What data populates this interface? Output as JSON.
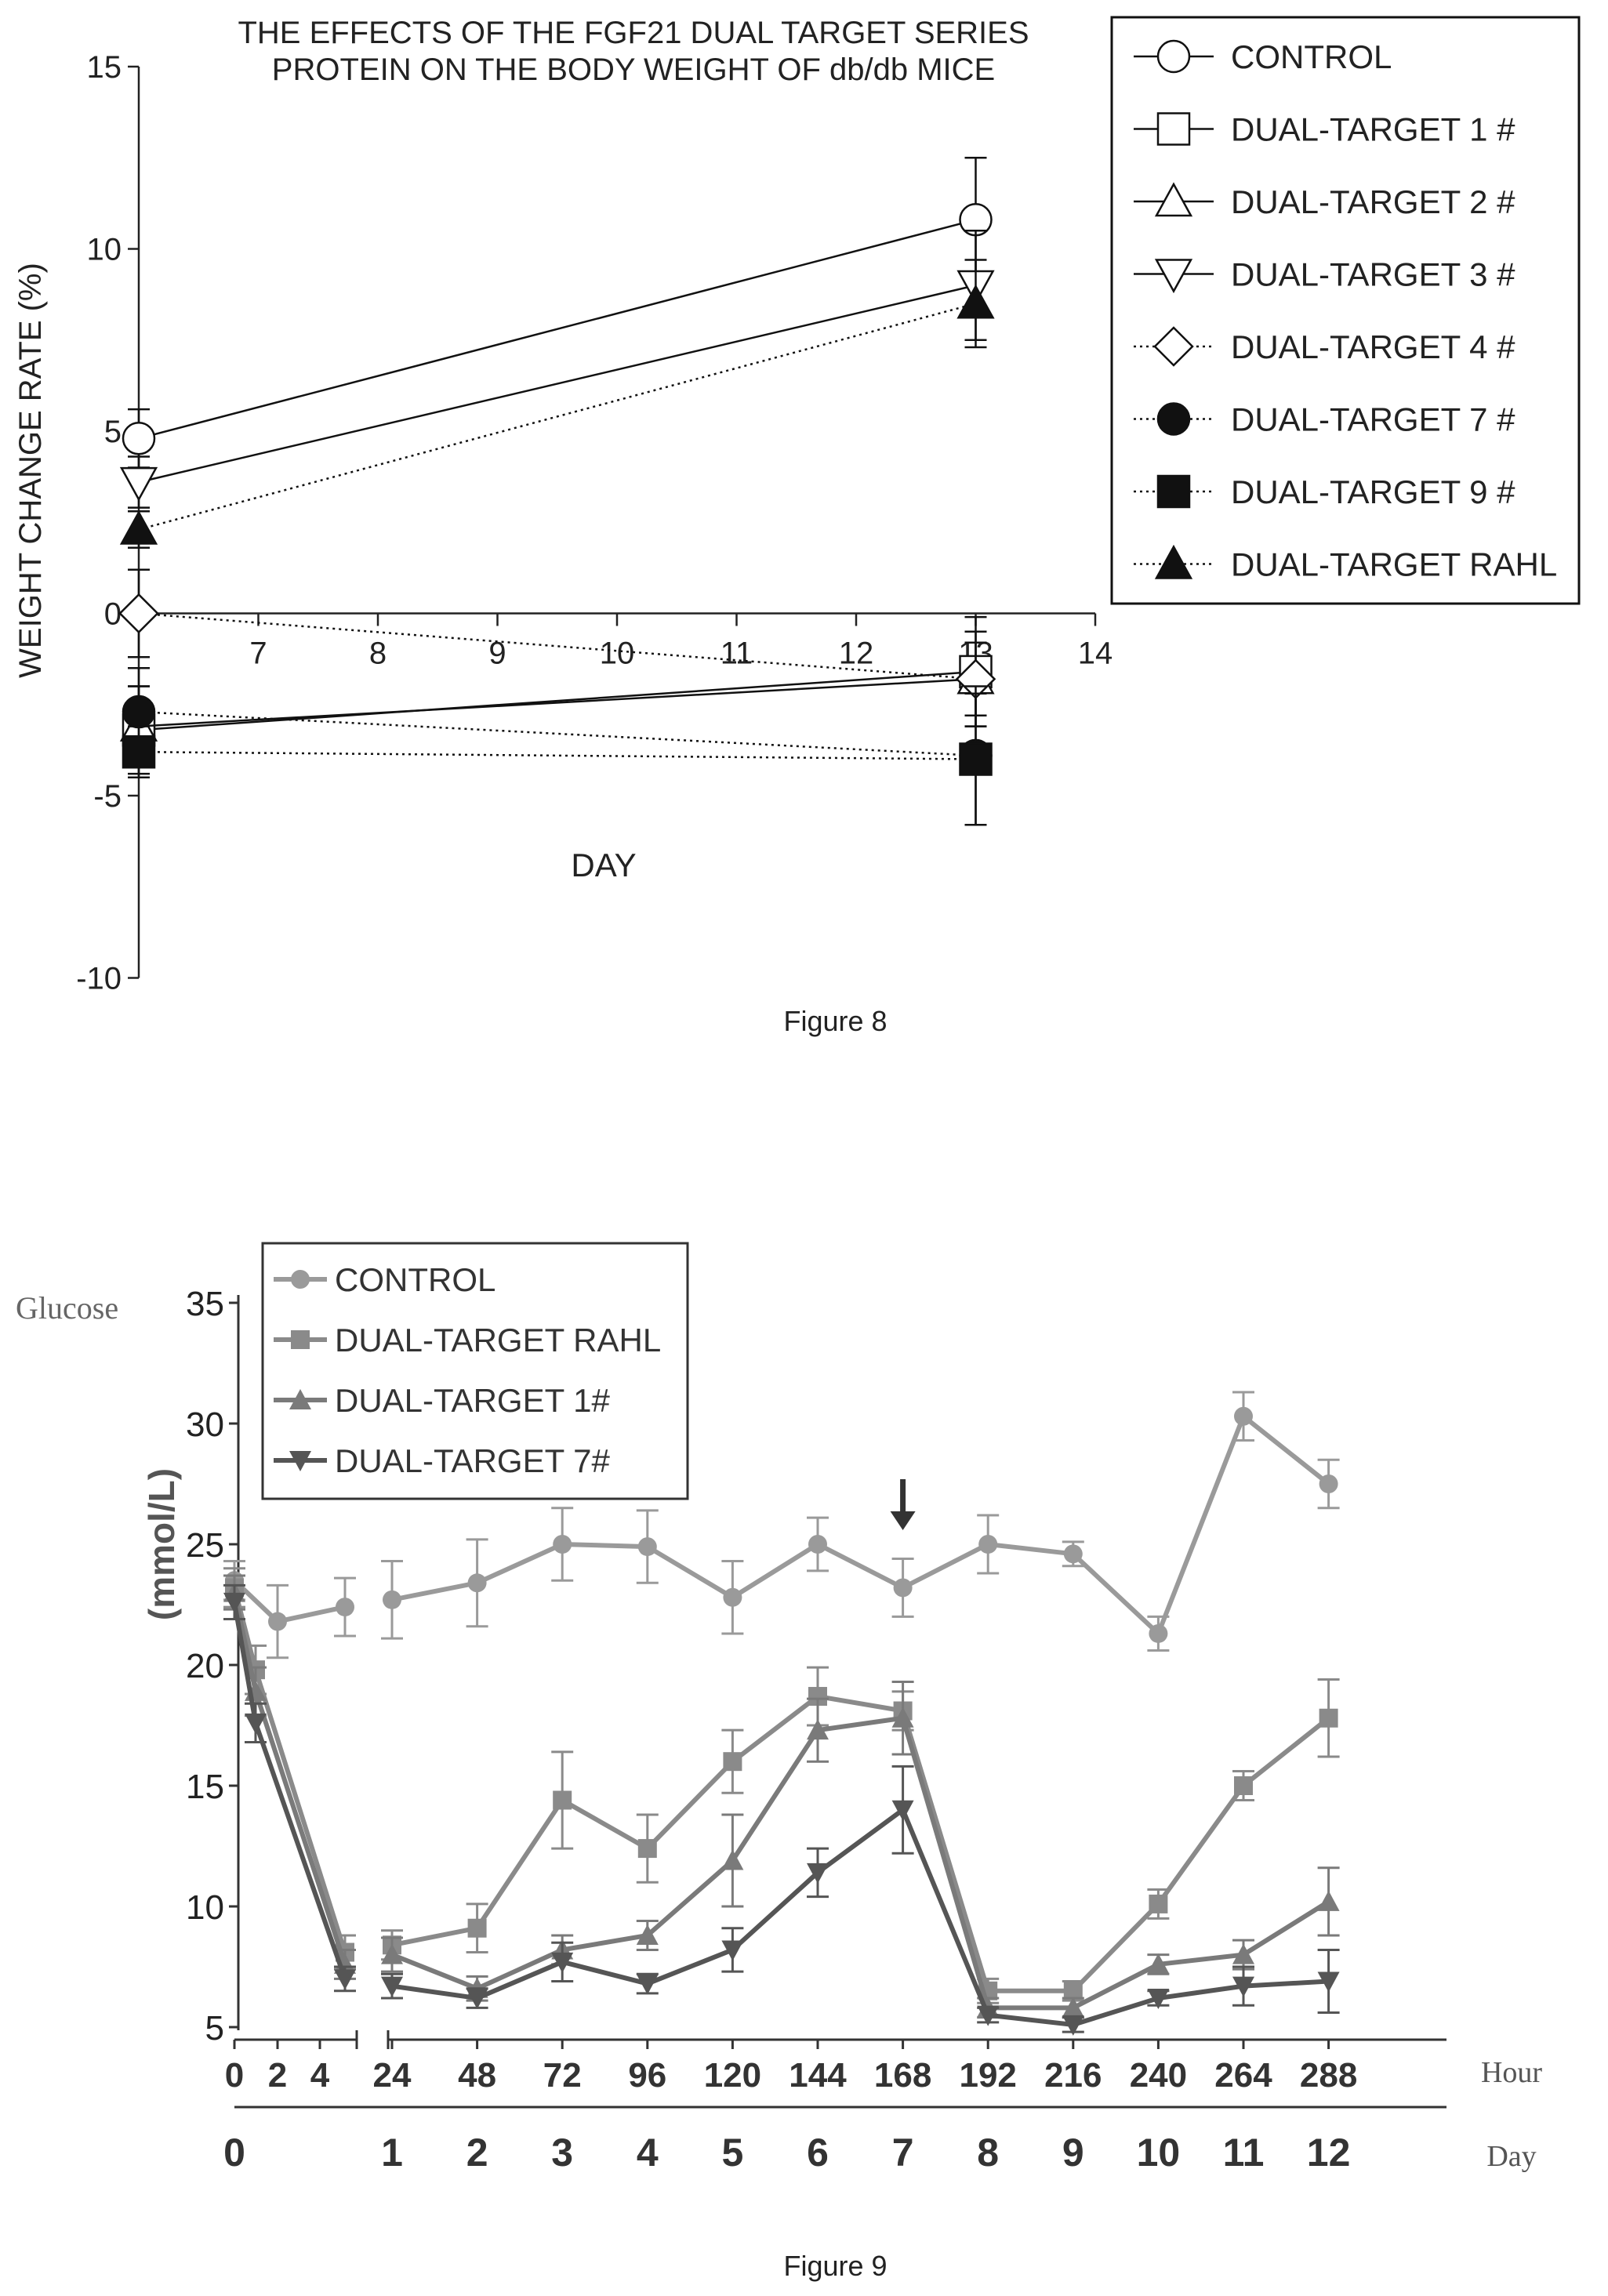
{
  "chart_data": [
    {
      "type": "line",
      "caption": "Figure 8",
      "title": [
        "THE EFFECTS OF THE FGF21 DUAL TARGET SERIES",
        "PROTEIN ON THE BODY WEIGHT OF db/db MICE"
      ],
      "xlabel": "DAY",
      "ylabel": "WEIGHT CHANGE RATE (%)",
      "xlim": [
        6,
        14
      ],
      "ylim": [
        -10,
        15
      ],
      "xticks": [
        "7",
        "8",
        "9",
        "10",
        "11",
        "12",
        "13",
        "14"
      ],
      "yticks": [
        "15",
        "10",
        "5",
        "0",
        "-5",
        "-10"
      ],
      "legend_position": "top-right",
      "series": [
        {
          "name": "CONTROL",
          "marker": "circle-open",
          "line": "solid",
          "x": [
            6,
            13
          ],
          "y": [
            4.8,
            10.8
          ],
          "err": [
            0.8,
            1.7
          ]
        },
        {
          "name": "DUAL-TARGET 1 #",
          "marker": "square-open",
          "line": "solid",
          "x": [
            6,
            13
          ],
          "y": [
            -3.2,
            -1.6
          ],
          "err": [
            1.2,
            1.5
          ]
        },
        {
          "name": "DUAL-TARGET 2 #",
          "marker": "triangle-up-open",
          "line": "solid",
          "x": [
            6,
            13
          ],
          "y": [
            -3.1,
            -1.8
          ],
          "err": [
            1.1,
            1.3
          ]
        },
        {
          "name": "DUAL-TARGET 3 #",
          "marker": "triangle-down-open",
          "line": "solid",
          "x": [
            6,
            13
          ],
          "y": [
            3.6,
            9.0
          ],
          "err": [
            0.7,
            1.5
          ]
        },
        {
          "name": "DUAL-TARGET 4 #",
          "marker": "diamond-open",
          "line": "dotted",
          "x": [
            6,
            13
          ],
          "y": [
            0.0,
            -1.8
          ],
          "err": [
            1.2,
            1.0
          ]
        },
        {
          "name": "DUAL-TARGET 7 #",
          "marker": "circle-filled",
          "line": "dotted",
          "x": [
            6,
            13
          ],
          "y": [
            -2.7,
            -3.9
          ],
          "err": [
            1.2,
            1.9
          ]
        },
        {
          "name": "DUAL-TARGET 9 #",
          "marker": "square-filled",
          "line": "dotted",
          "x": [
            6,
            13
          ],
          "y": [
            -3.8,
            -4.0
          ],
          "err": [
            0.7,
            1.8
          ]
        },
        {
          "name": "DUAL-TARGET RAHL",
          "marker": "triangle-up-filled",
          "line": "dotted",
          "x": [
            6,
            13
          ],
          "y": [
            2.3,
            8.5
          ],
          "err": [
            0.5,
            1.2
          ]
        }
      ]
    },
    {
      "type": "line",
      "caption": "Figure 9",
      "ylabel_left": "Glucose",
      "ylabel": "(mmol/L)",
      "ylim": [
        5,
        35
      ],
      "yticks": [
        "35",
        "30",
        "25",
        "20",
        "15",
        "10",
        "5"
      ],
      "x_hour_label": "Hour",
      "x_day_label": "Day",
      "hour_ticks": [
        "0",
        "2",
        "4",
        "24",
        "48",
        "72",
        "96",
        "120",
        "144",
        "168",
        "192",
        "216",
        "240",
        "264",
        "288"
      ],
      "day_ticks": [
        "0",
        "1",
        "2",
        "3",
        "4",
        "5",
        "6",
        "7",
        "8",
        "9",
        "10",
        "11",
        "12"
      ],
      "arrow_at_hour": 168,
      "legend_position": "top-left",
      "categories": [
        "0",
        "1",
        "2",
        "4",
        "5",
        "24",
        "48",
        "72",
        "96",
        "120",
        "144",
        "168",
        "192",
        "216",
        "240",
        "264",
        "288"
      ],
      "series": [
        {
          "name": "CONTROL",
          "color": "#9a9a9a",
          "marker": "circle",
          "values": [
            23.5,
            null,
            21.8,
            null,
            22.4,
            22.7,
            23.4,
            25.0,
            24.9,
            22.8,
            25.0,
            23.2,
            25.0,
            24.6,
            21.3,
            30.3,
            27.5
          ],
          "err": [
            0.8,
            null,
            1.5,
            null,
            1.2,
            1.6,
            1.8,
            1.5,
            1.5,
            1.5,
            1.1,
            1.2,
            1.2,
            0.5,
            0.7,
            1.0,
            1.0
          ]
        },
        {
          "name": "DUAL-TARGET RAHL",
          "color": "#8a8a8a",
          "marker": "square",
          "values": [
            23.2,
            19.8,
            null,
            null,
            8.1,
            8.4,
            9.1,
            14.4,
            12.4,
            16.0,
            18.7,
            18.1,
            6.5,
            6.5,
            10.1,
            15.0,
            17.8
          ],
          "err": [
            0.8,
            1.0,
            null,
            null,
            0.7,
            0.6,
            1.0,
            2.0,
            1.4,
            1.3,
            1.2,
            0.8,
            0.5,
            0.4,
            0.6,
            0.6,
            1.6
          ]
        },
        {
          "name": "DUAL-TARGET 1#",
          "color": "#7a7a7a",
          "marker": "triangle-up",
          "values": [
            23.0,
            18.9,
            null,
            null,
            7.6,
            8.0,
            6.6,
            8.2,
            8.8,
            11.9,
            17.3,
            17.8,
            5.8,
            5.8,
            7.6,
            8.0,
            10.2
          ],
          "err": [
            0.7,
            1.0,
            null,
            null,
            0.6,
            0.7,
            0.5,
            0.6,
            0.6,
            1.9,
            1.3,
            1.5,
            0.4,
            0.4,
            0.4,
            0.6,
            1.4
          ]
        },
        {
          "name": "DUAL-TARGET 7#",
          "color": "#555555",
          "marker": "triangle-down",
          "values": [
            22.6,
            17.6,
            null,
            null,
            7.0,
            6.7,
            6.2,
            7.7,
            6.8,
            8.2,
            11.4,
            14.0,
            5.5,
            5.1,
            6.2,
            6.7,
            6.9
          ],
          "err": [
            0.7,
            0.8,
            null,
            null,
            0.5,
            0.5,
            0.4,
            0.8,
            0.4,
            0.9,
            1.0,
            1.8,
            0.3,
            0.3,
            0.3,
            0.8,
            1.3
          ]
        }
      ]
    }
  ]
}
